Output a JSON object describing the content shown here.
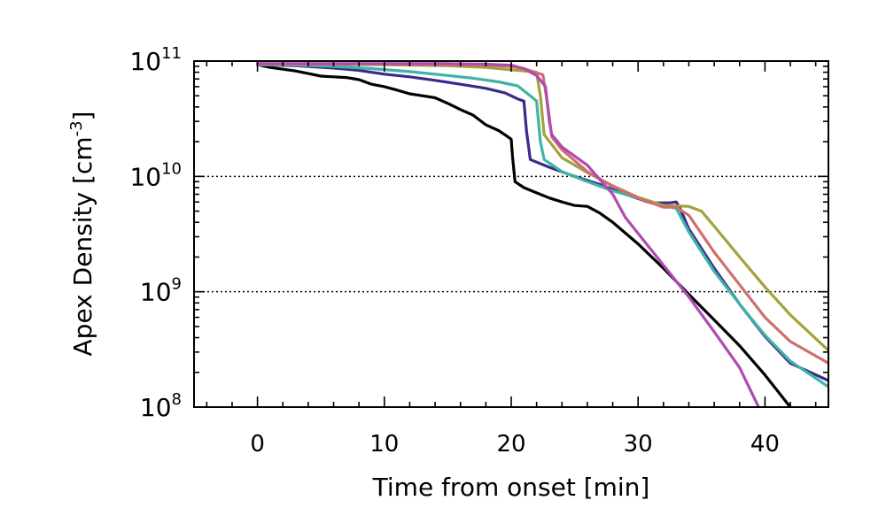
{
  "chart_data": {
    "type": "line",
    "title": "",
    "xlabel": "Time from onset [min]",
    "ylabel": "Apex Density [cm",
    "ylabel_exponent": "-3",
    "ylabel_close": "]",
    "y_scale": "log",
    "xlim": [
      -5,
      45
    ],
    "ylim": [
      100000000.0,
      100000000000.0
    ],
    "x_ticks": [
      0,
      10,
      20,
      30,
      40
    ],
    "x_tick_labels": [
      "0",
      "10",
      "20",
      "30",
      "40"
    ],
    "y_ticks": [
      100000000.0,
      1000000000.0,
      10000000000.0,
      100000000000.0
    ],
    "y_tick_labels": [
      {
        "base": "10",
        "exp": "8"
      },
      {
        "base": "10",
        "exp": "9"
      },
      {
        "base": "10",
        "exp": "10"
      },
      {
        "base": "10",
        "exp": "11"
      }
    ],
    "grid": "dotted horizontal at major y ticks",
    "legend": "none",
    "series": [
      {
        "name": "black",
        "color": "#000000",
        "x": [
          0,
          1,
          2,
          3,
          4,
          5,
          6,
          7,
          8,
          9,
          10,
          11,
          12,
          13,
          14,
          15,
          16,
          17,
          18,
          19,
          19.5,
          20,
          20.1,
          20.3,
          21,
          22,
          23,
          24,
          25,
          26,
          27,
          28,
          30,
          32,
          34,
          36,
          38,
          40,
          42
        ],
        "y": [
          93000000000.0,
          88000000000.0,
          85000000000.0,
          82000000000.0,
          78000000000.0,
          74000000000.0,
          73000000000.0,
          72000000000.0,
          69000000000.0,
          63000000000.0,
          60000000000.0,
          56000000000.0,
          52000000000.0,
          50000000000.0,
          48000000000.0,
          43000000000.0,
          38000000000.0,
          34000000000.0,
          28000000000.0,
          25000000000.0,
          23000000000.0,
          21000000000.0,
          15000000000.0,
          9000000000.0,
          8000000000.0,
          7200000000.0,
          6500000000.0,
          6000000000.0,
          5600000000.0,
          5500000000.0,
          4800000000.0,
          4000000000.0,
          2600000000.0,
          1600000000.0,
          950000000.0,
          570000000.0,
          340000000.0,
          190000000.0,
          100000000.0
        ]
      },
      {
        "name": "navy",
        "color": "#3a2a8c",
        "x": [
          0,
          3,
          6,
          8,
          10,
          12,
          14,
          16,
          18,
          19.5,
          20.5,
          21,
          21.2,
          21.5,
          23,
          25,
          27,
          29,
          31,
          32.5,
          33,
          33.3,
          34,
          36,
          38,
          40,
          42,
          45
        ],
        "y": [
          93000000000.0,
          91000000000.0,
          87000000000.0,
          83000000000.0,
          77000000000.0,
          73000000000.0,
          68000000000.0,
          63000000000.0,
          58000000000.0,
          53000000000.0,
          47000000000.0,
          45000000000.0,
          25000000000.0,
          14000000000.0,
          12000000000.0,
          10000000000.0,
          8500000000.0,
          7000000000.0,
          5900000000.0,
          5900000000.0,
          6000000000.0,
          5300000000.0,
          3500000000.0,
          1600000000.0,
          780000000.0,
          410000000.0,
          240000000.0,
          170000000.0
        ]
      },
      {
        "name": "teal",
        "color": "#3fb3a6",
        "x": [
          0,
          3,
          6,
          9,
          12,
          15,
          17,
          19,
          20.5,
          21.5,
          22,
          22.3,
          22.6,
          24,
          26,
          28,
          30,
          32,
          33,
          34,
          36,
          38,
          40,
          42,
          45
        ],
        "y": [
          93000000000.0,
          92000000000.0,
          90000000000.0,
          86000000000.0,
          81000000000.0,
          75000000000.0,
          71000000000.0,
          66000000000.0,
          61000000000.0,
          50000000000.0,
          45000000000.0,
          20000000000.0,
          14000000000.0,
          11000000000.0,
          9000000000.0,
          7500000000.0,
          6500000000.0,
          5600000000.0,
          5300000000.0,
          3300000000.0,
          1500000000.0,
          780000000.0,
          420000000.0,
          250000000.0,
          150000000.0
        ]
      },
      {
        "name": "olive",
        "color": "#a3a23a",
        "x": [
          0,
          5,
          10,
          15,
          18,
          20,
          21,
          22,
          22.3,
          22.6,
          24,
          26,
          28,
          30,
          32,
          34,
          35,
          36,
          38,
          40,
          42,
          45
        ],
        "y": [
          94000000000.0,
          94000000000.0,
          93000000000.0,
          91000000000.0,
          88000000000.0,
          84000000000.0,
          82000000000.0,
          80000000000.0,
          50000000000.0,
          23000000000.0,
          14500000000.0,
          10800000000.0,
          8300000000.0,
          6600000000.0,
          5600000000.0,
          5500000000.0,
          5000000000.0,
          3700000000.0,
          2000000000.0,
          1100000000.0,
          630000000.0,
          310000000.0
        ]
      },
      {
        "name": "salmon",
        "color": "#d26e6e",
        "x": [
          0,
          5,
          10,
          15,
          18,
          20,
          21,
          22.5,
          22.9,
          23.2,
          24,
          26,
          28,
          30,
          32,
          33,
          34,
          36,
          38,
          40,
          42,
          45
        ],
        "y": [
          94000000000.0,
          94000000000.0,
          94000000000.0,
          93000000000.0,
          92000000000.0,
          90000000000.0,
          86000000000.0,
          76000000000.0,
          40000000000.0,
          22000000000.0,
          17000000000.0,
          11000000000.0,
          8200000000.0,
          6500000000.0,
          5400000000.0,
          5400000000.0,
          4600000000.0,
          2200000000.0,
          1150000000.0,
          600000000.0,
          370000000.0,
          240000000.0
        ]
      },
      {
        "name": "magenta",
        "color": "#b04ab2",
        "x": [
          0,
          5,
          10,
          15,
          18,
          20,
          21,
          22,
          22.7,
          23,
          23.2,
          23.5,
          24,
          26,
          28,
          29,
          30,
          32,
          34,
          36,
          38,
          39.5
        ],
        "y": [
          95000000000.0,
          95000000000.0,
          95000000000.0,
          95000000000.0,
          94000000000.0,
          92000000000.0,
          86000000000.0,
          75000000000.0,
          60000000000.0,
          30000000000.0,
          23000000000.0,
          21000000000.0,
          18000000000.0,
          12500000000.0,
          7000000000.0,
          4400000000.0,
          3200000000.0,
          1700000000.0,
          900000000.0,
          450000000.0,
          220000000.0,
          100000000.0
        ]
      }
    ]
  }
}
